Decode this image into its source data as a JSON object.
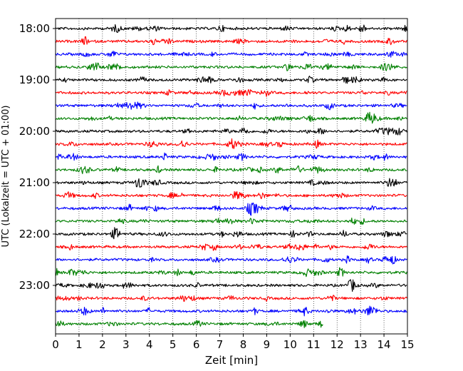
{
  "chart_data": {
    "type": "line",
    "title": "",
    "xlabel": "Zeit  [min]",
    "ylabel": "UTC (Lokalzeit = UTC + 01:00)",
    "xlim": [
      0,
      15
    ],
    "x_ticks": [
      "0",
      "1",
      "2",
      "3",
      "4",
      "5",
      "6",
      "7",
      "8",
      "9",
      "10",
      "11",
      "12",
      "13",
      "14",
      "15"
    ],
    "y_tick_labels": [
      "18:00",
      "19:00",
      "20:00",
      "21:00",
      "22:00",
      "23:00"
    ],
    "trace_interval_min": 15,
    "grid": "vertical dotted at each minute",
    "colors_cycle": [
      "#000000",
      "#ff0000",
      "#0000ff",
      "#008000"
    ],
    "traces": [
      {
        "start": "18:00",
        "color": "#000000",
        "end_min": 15
      },
      {
        "start": "18:15",
        "color": "#ff0000",
        "end_min": 15
      },
      {
        "start": "18:30",
        "color": "#0000ff",
        "end_min": 15
      },
      {
        "start": "18:45",
        "color": "#008000",
        "end_min": 15
      },
      {
        "start": "19:00",
        "color": "#000000",
        "end_min": 15
      },
      {
        "start": "19:15",
        "color": "#ff0000",
        "end_min": 15
      },
      {
        "start": "19:30",
        "color": "#0000ff",
        "end_min": 15
      },
      {
        "start": "19:45",
        "color": "#008000",
        "end_min": 15
      },
      {
        "start": "20:00",
        "color": "#000000",
        "end_min": 15
      },
      {
        "start": "20:15",
        "color": "#ff0000",
        "end_min": 15
      },
      {
        "start": "20:30",
        "color": "#0000ff",
        "end_min": 15
      },
      {
        "start": "20:45",
        "color": "#008000",
        "end_min": 15
      },
      {
        "start": "21:00",
        "color": "#000000",
        "end_min": 15
      },
      {
        "start": "21:15",
        "color": "#ff0000",
        "end_min": 15
      },
      {
        "start": "21:30",
        "color": "#0000ff",
        "end_min": 15
      },
      {
        "start": "21:45",
        "color": "#008000",
        "end_min": 15
      },
      {
        "start": "22:00",
        "color": "#000000",
        "end_min": 15
      },
      {
        "start": "22:15",
        "color": "#ff0000",
        "end_min": 15
      },
      {
        "start": "22:30",
        "color": "#0000ff",
        "end_min": 15
      },
      {
        "start": "22:45",
        "color": "#008000",
        "end_min": 15
      },
      {
        "start": "23:00",
        "color": "#000000",
        "end_min": 15
      },
      {
        "start": "23:15",
        "color": "#ff0000",
        "end_min": 15
      },
      {
        "start": "23:30",
        "color": "#0000ff",
        "end_min": 15
      },
      {
        "start": "23:45",
        "color": "#008000",
        "end_min": 11.4
      }
    ]
  }
}
